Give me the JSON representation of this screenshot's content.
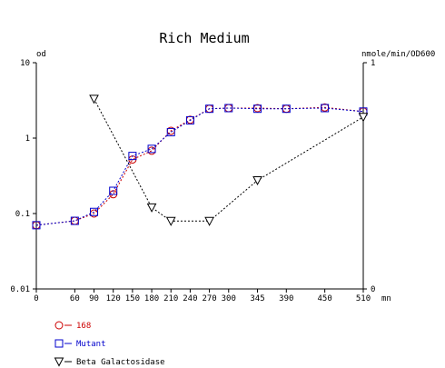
{
  "chart_data": {
    "type": "line",
    "title": "Rich Medium",
    "xlabel": "mn",
    "ylabel_left": "od",
    "ylabel_right": "nmole/min/OD600",
    "x_ticks": [
      0,
      60,
      90,
      120,
      150,
      180,
      210,
      240,
      270,
      300,
      345,
      390,
      450,
      510
    ],
    "x_range": [
      0,
      510
    ],
    "y_left": {
      "scale": "log",
      "range": [
        0.01,
        10
      ],
      "ticks": [
        "0.01",
        "0.1",
        "1",
        "10"
      ]
    },
    "y_right": {
      "scale": "linear",
      "range": [
        0,
        1
      ],
      "ticks": [
        "0",
        "1"
      ]
    },
    "grid": false,
    "legend_position": "bottom-left",
    "series": [
      {
        "name": "168",
        "axis": "left",
        "marker": "circle",
        "color": "#cc0000",
        "x": [
          0,
          60,
          90,
          120,
          150,
          180,
          210,
          240,
          270,
          300,
          345,
          390,
          450,
          510
        ],
        "y": [
          0.07,
          0.08,
          0.1,
          0.18,
          0.52,
          0.68,
          1.25,
          1.75,
          2.45,
          2.5,
          2.5,
          2.45,
          2.55,
          2.25
        ]
      },
      {
        "name": "Mutant",
        "axis": "left",
        "marker": "square",
        "color": "#0000cc",
        "x": [
          0,
          60,
          90,
          120,
          150,
          180,
          210,
          240,
          270,
          300,
          345,
          390,
          450,
          510
        ],
        "y": [
          0.07,
          0.08,
          0.105,
          0.2,
          0.58,
          0.72,
          1.2,
          1.72,
          2.45,
          2.5,
          2.45,
          2.45,
          2.5,
          2.25
        ]
      },
      {
        "name": "Beta Galactosidase",
        "axis": "right",
        "marker": "triangle-down",
        "color": "#000000",
        "x": [
          90,
          180,
          210,
          270,
          345,
          510
        ],
        "y": [
          0.84,
          0.36,
          0.3,
          0.3,
          0.48,
          0.76
        ]
      }
    ]
  }
}
